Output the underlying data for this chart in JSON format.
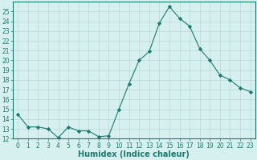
{
  "x": [
    0,
    1,
    2,
    3,
    4,
    5,
    6,
    7,
    8,
    9,
    10,
    11,
    12,
    13,
    14,
    15,
    16,
    17,
    18,
    19,
    20,
    21,
    22,
    23
  ],
  "y": [
    14.5,
    13.2,
    13.2,
    13.0,
    12.1,
    13.2,
    12.8,
    12.8,
    12.2,
    12.3,
    15.0,
    17.6,
    20.0,
    20.9,
    23.8,
    25.5,
    24.3,
    23.5,
    21.2,
    20.0,
    18.5,
    18.0,
    17.2,
    16.8
  ],
  "line_color": "#1a7a6e",
  "marker": "D",
  "marker_size": 2.2,
  "bg_color": "#d6f0f0",
  "grid_color": "#b8d8d8",
  "xlabel": "Humidex (Indice chaleur)",
  "ylim": [
    12,
    26
  ],
  "xlim": [
    -0.5,
    23.5
  ],
  "yticks": [
    12,
    13,
    14,
    15,
    16,
    17,
    18,
    19,
    20,
    21,
    22,
    23,
    24,
    25
  ],
  "xticks": [
    0,
    1,
    2,
    3,
    4,
    5,
    6,
    7,
    8,
    9,
    10,
    11,
    12,
    13,
    14,
    15,
    16,
    17,
    18,
    19,
    20,
    21,
    22,
    23
  ],
  "tick_color": "#1a7a6e",
  "label_color": "#1a7a6e",
  "axis_color": "#1a7a6e",
  "xlabel_fontsize": 7,
  "tick_fontsize": 5.5
}
